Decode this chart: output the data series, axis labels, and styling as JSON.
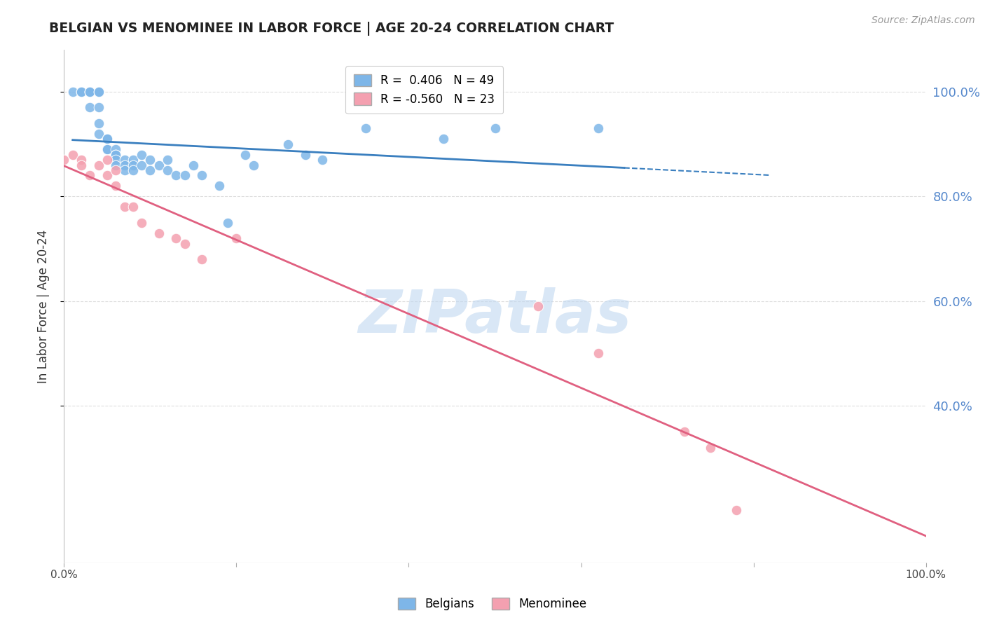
{
  "title": "BELGIAN VS MENOMINEE IN LABOR FORCE | AGE 20-24 CORRELATION CHART",
  "source": "Source: ZipAtlas.com",
  "ylabel": "In Labor Force | Age 20-24",
  "xlim": [
    0.0,
    1.0
  ],
  "ylim": [
    0.1,
    1.08
  ],
  "belgian_r": 0.406,
  "belgian_n": 49,
  "menominee_r": -0.56,
  "menominee_n": 23,
  "belgian_color": "#7EB6E8",
  "menominee_color": "#F4A0B0",
  "belgian_line_color": "#3A7FBF",
  "menominee_line_color": "#E06080",
  "watermark_text": "ZIPatlas",
  "watermark_color": "#C0D8F0",
  "grid_color": "#DDDDDD",
  "title_color": "#222222",
  "right_tick_color": "#5588CC",
  "belgians_x": [
    0.01,
    0.02,
    0.02,
    0.03,
    0.03,
    0.03,
    0.03,
    0.04,
    0.04,
    0.04,
    0.04,
    0.04,
    0.05,
    0.05,
    0.05,
    0.05,
    0.06,
    0.06,
    0.06,
    0.06,
    0.06,
    0.07,
    0.07,
    0.07,
    0.08,
    0.08,
    0.08,
    0.09,
    0.09,
    0.1,
    0.1,
    0.11,
    0.12,
    0.12,
    0.13,
    0.14,
    0.15,
    0.16,
    0.18,
    0.19,
    0.21,
    0.22,
    0.26,
    0.28,
    0.3,
    0.35,
    0.44,
    0.5,
    0.62
  ],
  "belgians_y": [
    1.0,
    1.0,
    1.0,
    1.0,
    1.0,
    1.0,
    0.97,
    1.0,
    1.0,
    0.97,
    0.94,
    0.92,
    0.91,
    0.91,
    0.89,
    0.89,
    0.89,
    0.88,
    0.88,
    0.87,
    0.86,
    0.87,
    0.86,
    0.85,
    0.87,
    0.86,
    0.85,
    0.88,
    0.86,
    0.87,
    0.85,
    0.86,
    0.87,
    0.85,
    0.84,
    0.84,
    0.86,
    0.84,
    0.82,
    0.75,
    0.88,
    0.86,
    0.9,
    0.88,
    0.87,
    0.93,
    0.91,
    0.93,
    0.93
  ],
  "menominee_x": [
    0.0,
    0.01,
    0.02,
    0.02,
    0.03,
    0.04,
    0.05,
    0.05,
    0.06,
    0.06,
    0.07,
    0.08,
    0.09,
    0.11,
    0.13,
    0.14,
    0.16,
    0.2,
    0.55,
    0.62,
    0.72,
    0.75,
    0.78
  ],
  "menominee_y": [
    0.87,
    0.88,
    0.87,
    0.86,
    0.84,
    0.86,
    0.87,
    0.84,
    0.85,
    0.82,
    0.78,
    0.78,
    0.75,
    0.73,
    0.72,
    0.71,
    0.68,
    0.72,
    0.59,
    0.5,
    0.35,
    0.32,
    0.2
  ],
  "dot_size": 110
}
